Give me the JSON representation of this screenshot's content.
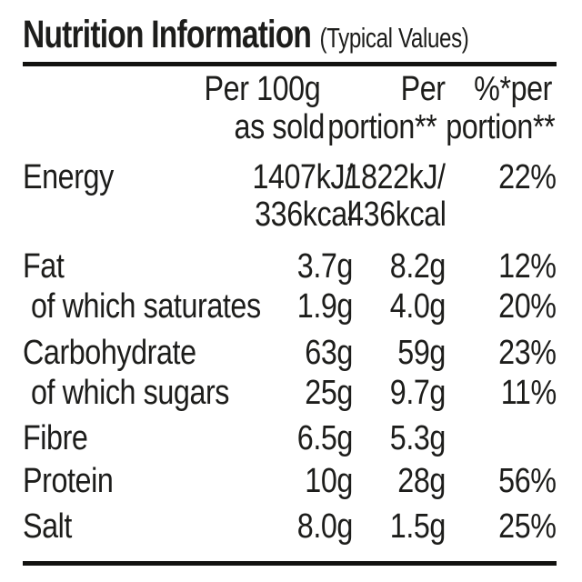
{
  "label": {
    "title": "Nutrition Information",
    "title_note": "(Typical Values)",
    "colors": {
      "text": "#1d1d1b",
      "rule": "#121210",
      "background": "#ffffff"
    },
    "header": {
      "per100_line1": "Per 100g",
      "per100_line2": "as sold",
      "portion_line1": "Per",
      "portion_line2": "portion**",
      "percent_line1": "%*per",
      "percent_line2": "portion**"
    },
    "rows": [
      {
        "name": "Energy",
        "per100": "1407kJ/",
        "per100_line2": "336kcal",
        "portion": "1822kJ/",
        "portion_line2": "436kcal",
        "percent": "22%"
      },
      {
        "name": "Fat",
        "per100": "3.7g",
        "portion": "8.2g",
        "percent": "12%"
      },
      {
        "name": "of which saturates",
        "per100": "1.9g",
        "portion": "4.0g",
        "percent": "20%"
      },
      {
        "name": "Carbohydrate",
        "per100": "63g",
        "portion": "59g",
        "percent": "23%"
      },
      {
        "name": "of which sugars",
        "per100": "25g",
        "portion": "9.7g",
        "percent": "11%"
      },
      {
        "name": "Fibre",
        "per100": "6.5g",
        "portion": "5.3g",
        "percent": ""
      },
      {
        "name": "Protein",
        "per100": "10g",
        "portion": "28g",
        "percent": "56%"
      },
      {
        "name": "Salt",
        "per100": "8.0g",
        "portion": "1.5g",
        "percent": "25%"
      }
    ]
  }
}
